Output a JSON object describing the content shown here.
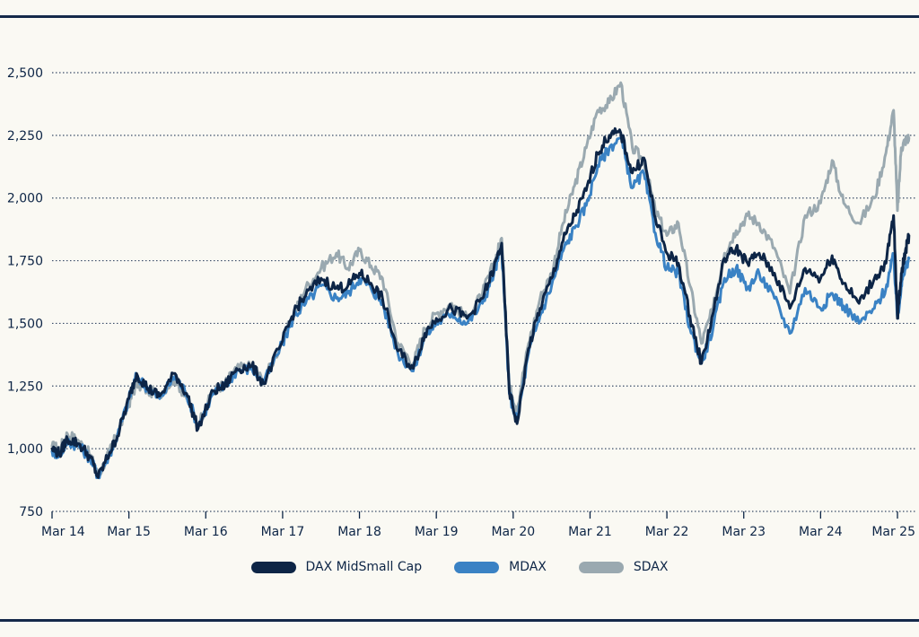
{
  "chart_data": {
    "type": "line",
    "title": "",
    "xlabel": "",
    "ylabel": "",
    "ylim": [
      750,
      2500
    ],
    "yticks": [
      750,
      1000,
      1250,
      1500,
      1750,
      2000,
      2250,
      2500
    ],
    "ytick_labels": [
      "750",
      "1,000",
      "1,250",
      "1,500",
      "1,750",
      "2,000",
      "2,250",
      "2,500"
    ],
    "xticks": [
      "Mar 14",
      "Mar 15",
      "Mar 16",
      "Mar 17",
      "Mar 18",
      "Mar 19",
      "Mar 20",
      "Mar 21",
      "Mar 22",
      "Mar 23",
      "Mar 24",
      "Mar 25"
    ],
    "grid": true,
    "legend_position": "bottom-center",
    "x_unit": "years since Mar 2014",
    "series": [
      {
        "name": "SDAX",
        "color": "#9aa9b0",
        "x": [
          0,
          0.1,
          0.2,
          0.35,
          0.5,
          0.6,
          0.75,
          0.85,
          1.0,
          1.1,
          1.25,
          1.4,
          1.6,
          1.75,
          1.9,
          2.1,
          2.25,
          2.4,
          2.6,
          2.75,
          3.0,
          3.15,
          3.3,
          3.5,
          3.7,
          3.85,
          4.0,
          4.15,
          4.3,
          4.5,
          4.7,
          4.85,
          5.0,
          5.2,
          5.4,
          5.6,
          5.75,
          5.85,
          5.95,
          6.05,
          6.2,
          6.35,
          6.5,
          6.65,
          6.8,
          6.95,
          7.1,
          7.25,
          7.4,
          7.55,
          7.7,
          7.85,
          8.0,
          8.15,
          8.3,
          8.45,
          8.6,
          8.75,
          8.9,
          9.05,
          9.2,
          9.4,
          9.6,
          9.8,
          10.0,
          10.15,
          10.3,
          10.5,
          10.7,
          10.85,
          10.95,
          11.0,
          11.05,
          11.1,
          11.15
        ],
        "y": [
          1010,
          1000,
          1060,
          1030,
          975,
          890,
          990,
          1060,
          1180,
          1260,
          1230,
          1220,
          1280,
          1200,
          1100,
          1230,
          1260,
          1320,
          1330,
          1270,
          1430,
          1540,
          1640,
          1720,
          1780,
          1720,
          1790,
          1730,
          1680,
          1420,
          1340,
          1480,
          1540,
          1580,
          1520,
          1620,
          1740,
          1840,
          1250,
          1160,
          1420,
          1600,
          1700,
          1900,
          2050,
          2200,
          2350,
          2380,
          2460,
          2200,
          2150,
          1950,
          1850,
          1900,
          1650,
          1420,
          1560,
          1780,
          1870,
          1930,
          1900,
          1800,
          1620,
          1930,
          1980,
          2150,
          1980,
          1900,
          2000,
          2180,
          2350,
          1950,
          2200,
          2230,
          2240
        ]
      },
      {
        "name": "MDAX",
        "color": "#3a82c4",
        "x": [
          0,
          0.1,
          0.2,
          0.35,
          0.5,
          0.6,
          0.75,
          0.85,
          1.0,
          1.1,
          1.25,
          1.4,
          1.6,
          1.75,
          1.9,
          2.1,
          2.25,
          2.4,
          2.6,
          2.75,
          3.0,
          3.15,
          3.3,
          3.5,
          3.7,
          3.85,
          4.0,
          4.15,
          4.3,
          4.5,
          4.7,
          4.85,
          5.0,
          5.2,
          5.4,
          5.6,
          5.75,
          5.85,
          5.95,
          6.05,
          6.2,
          6.35,
          6.5,
          6.65,
          6.8,
          6.95,
          7.1,
          7.25,
          7.4,
          7.55,
          7.7,
          7.85,
          8.0,
          8.15,
          8.3,
          8.45,
          8.6,
          8.75,
          8.9,
          9.05,
          9.2,
          9.4,
          9.6,
          9.8,
          10.0,
          10.15,
          10.3,
          10.5,
          10.7,
          10.85,
          10.95,
          11.0,
          11.05,
          11.1,
          11.15
        ],
        "y": [
          990,
          975,
          1030,
          1010,
          960,
          890,
          980,
          1050,
          1200,
          1290,
          1240,
          1200,
          1290,
          1220,
          1090,
          1220,
          1250,
          1310,
          1320,
          1260,
          1420,
          1530,
          1580,
          1650,
          1600,
          1620,
          1680,
          1640,
          1580,
          1380,
          1310,
          1450,
          1500,
          1540,
          1500,
          1580,
          1700,
          1800,
          1220,
          1110,
          1380,
          1530,
          1650,
          1790,
          1880,
          1970,
          2130,
          2200,
          2240,
          2040,
          2100,
          1860,
          1720,
          1700,
          1480,
          1340,
          1480,
          1680,
          1720,
          1640,
          1700,
          1600,
          1460,
          1640,
          1560,
          1620,
          1570,
          1500,
          1560,
          1640,
          1770,
          1520,
          1650,
          1720,
          1760
        ]
      },
      {
        "name": "DAX MidSmall Cap",
        "color": "#0d2546",
        "x": [
          0,
          0.1,
          0.2,
          0.35,
          0.5,
          0.6,
          0.75,
          0.85,
          1.0,
          1.1,
          1.25,
          1.4,
          1.6,
          1.75,
          1.9,
          2.1,
          2.25,
          2.4,
          2.6,
          2.75,
          3.0,
          3.15,
          3.3,
          3.5,
          3.7,
          3.85,
          4.0,
          4.15,
          4.3,
          4.5,
          4.7,
          4.85,
          5.0,
          5.2,
          5.4,
          5.6,
          5.75,
          5.85,
          5.95,
          6.05,
          6.2,
          6.35,
          6.5,
          6.65,
          6.8,
          6.95,
          7.1,
          7.25,
          7.4,
          7.55,
          7.7,
          7.85,
          8.0,
          8.15,
          8.3,
          8.45,
          8.6,
          8.75,
          8.9,
          9.05,
          9.2,
          9.4,
          9.6,
          9.8,
          10.0,
          10.15,
          10.3,
          10.5,
          10.7,
          10.85,
          10.95,
          11.0,
          11.05,
          11.1,
          11.15
        ],
        "y": [
          1000,
          980,
          1040,
          1020,
          965,
          885,
          985,
          1050,
          1200,
          1300,
          1240,
          1210,
          1300,
          1220,
          1080,
          1230,
          1250,
          1320,
          1330,
          1260,
          1430,
          1550,
          1610,
          1680,
          1640,
          1650,
          1700,
          1660,
          1600,
          1390,
          1320,
          1460,
          1520,
          1560,
          1520,
          1600,
          1720,
          1820,
          1230,
          1100,
          1400,
          1560,
          1680,
          1830,
          1930,
          2030,
          2180,
          2250,
          2260,
          2100,
          2160,
          1920,
          1780,
          1740,
          1530,
          1340,
          1540,
          1760,
          1800,
          1740,
          1780,
          1700,
          1560,
          1720,
          1680,
          1770,
          1660,
          1580,
          1680,
          1740,
          1930,
          1520,
          1700,
          1780,
          1850
        ]
      }
    ]
  }
}
